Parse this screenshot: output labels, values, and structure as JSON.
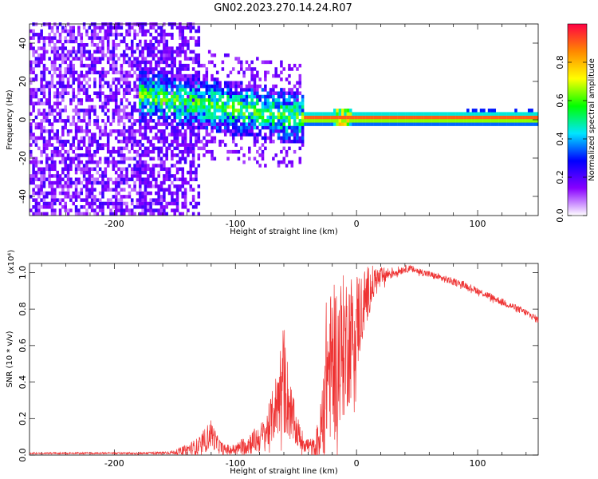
{
  "title": "GN02.2023.270.14.24.R07",
  "chart_data": [
    {
      "type": "heatmap",
      "xlabel": "Height of straight line (km)",
      "ylabel": "Frequency (Hz)",
      "xlim": [
        -270,
        150
      ],
      "ylim": [
        -50,
        50
      ],
      "xticks": [
        -200,
        -100,
        0,
        100
      ],
      "yticks": [
        40,
        20,
        0,
        -20,
        -40
      ],
      "colorbar": {
        "label": "Normalized spectral amplitude",
        "range": [
          0,
          1
        ],
        "ticks": [
          "0.0",
          "0.2",
          "0.4",
          "0.6",
          "0.8"
        ],
        "colormap": [
          "#ffffff",
          "#8800ff",
          "#0000ff",
          "#00e5ff",
          "#00ff00",
          "#ffff00",
          "#ff8800",
          "#ff0044"
        ]
      },
      "features": {
        "scattered_noise_x_range": [
          -270,
          -130
        ],
        "central_cluster_x_range": [
          -180,
          -45
        ],
        "line_x_range": [
          -45,
          150
        ],
        "line_frequency": 0
      }
    },
    {
      "type": "line",
      "xlabel": "Height of straight line (km)",
      "ylabel": "SNR (10 * v/v)",
      "scale_label": "(x10⁴)",
      "xlim": [
        -270,
        150
      ],
      "ylim": [
        0,
        1.05
      ],
      "xticks": [
        -200,
        -100,
        0,
        100
      ],
      "yticks": [
        "0.0",
        "0.2",
        "0.4",
        "0.6",
        "0.8",
        "1.0"
      ],
      "color": "#ee3333",
      "series": [
        {
          "x": [
            -270,
            -250,
            -220,
            -200,
            -180,
            -160,
            -150,
            -140,
            -130,
            -125,
            -120,
            -115,
            -110,
            -100,
            -90,
            -80,
            -75,
            -70,
            -65,
            -62,
            -60,
            -58,
            -55,
            -50,
            -45,
            -40,
            -35,
            -30,
            -27,
            -25,
            -20,
            -15,
            -10,
            -5,
            0,
            5,
            10,
            15,
            20,
            25,
            30,
            35,
            40,
            45,
            50,
            60,
            70,
            80,
            90,
            100,
            110,
            120,
            130,
            140,
            150
          ],
          "y": [
            0.01,
            0.01,
            0.01,
            0.01,
            0.01,
            0.012,
            0.015,
            0.03,
            0.05,
            0.08,
            0.12,
            0.06,
            0.03,
            0.03,
            0.06,
            0.09,
            0.12,
            0.2,
            0.3,
            0.38,
            0.42,
            0.35,
            0.25,
            0.14,
            0.08,
            0.05,
            0.04,
            0.1,
            0.3,
            0.45,
            0.5,
            0.55,
            0.6,
            0.65,
            0.72,
            0.82,
            0.9,
            0.95,
            0.97,
            0.99,
            1.0,
            1.01,
            1.02,
            1.02,
            1.01,
            0.99,
            0.97,
            0.95,
            0.93,
            0.9,
            0.87,
            0.84,
            0.81,
            0.78,
            0.74
          ],
          "spread": [
            0.005,
            0.005,
            0.005,
            0.005,
            0.006,
            0.008,
            0.012,
            0.03,
            0.05,
            0.07,
            0.08,
            0.05,
            0.03,
            0.03,
            0.06,
            0.08,
            0.1,
            0.14,
            0.2,
            0.28,
            0.32,
            0.25,
            0.18,
            0.1,
            0.06,
            0.05,
            0.05,
            0.15,
            0.35,
            0.4,
            0.42,
            0.42,
            0.4,
            0.36,
            0.3,
            0.2,
            0.14,
            0.09,
            0.06,
            0.04,
            0.03,
            0.025,
            0.02,
            0.02,
            0.02,
            0.02,
            0.02,
            0.02,
            0.02,
            0.02,
            0.02,
            0.02,
            0.02,
            0.02,
            0.02
          ]
        }
      ]
    }
  ]
}
